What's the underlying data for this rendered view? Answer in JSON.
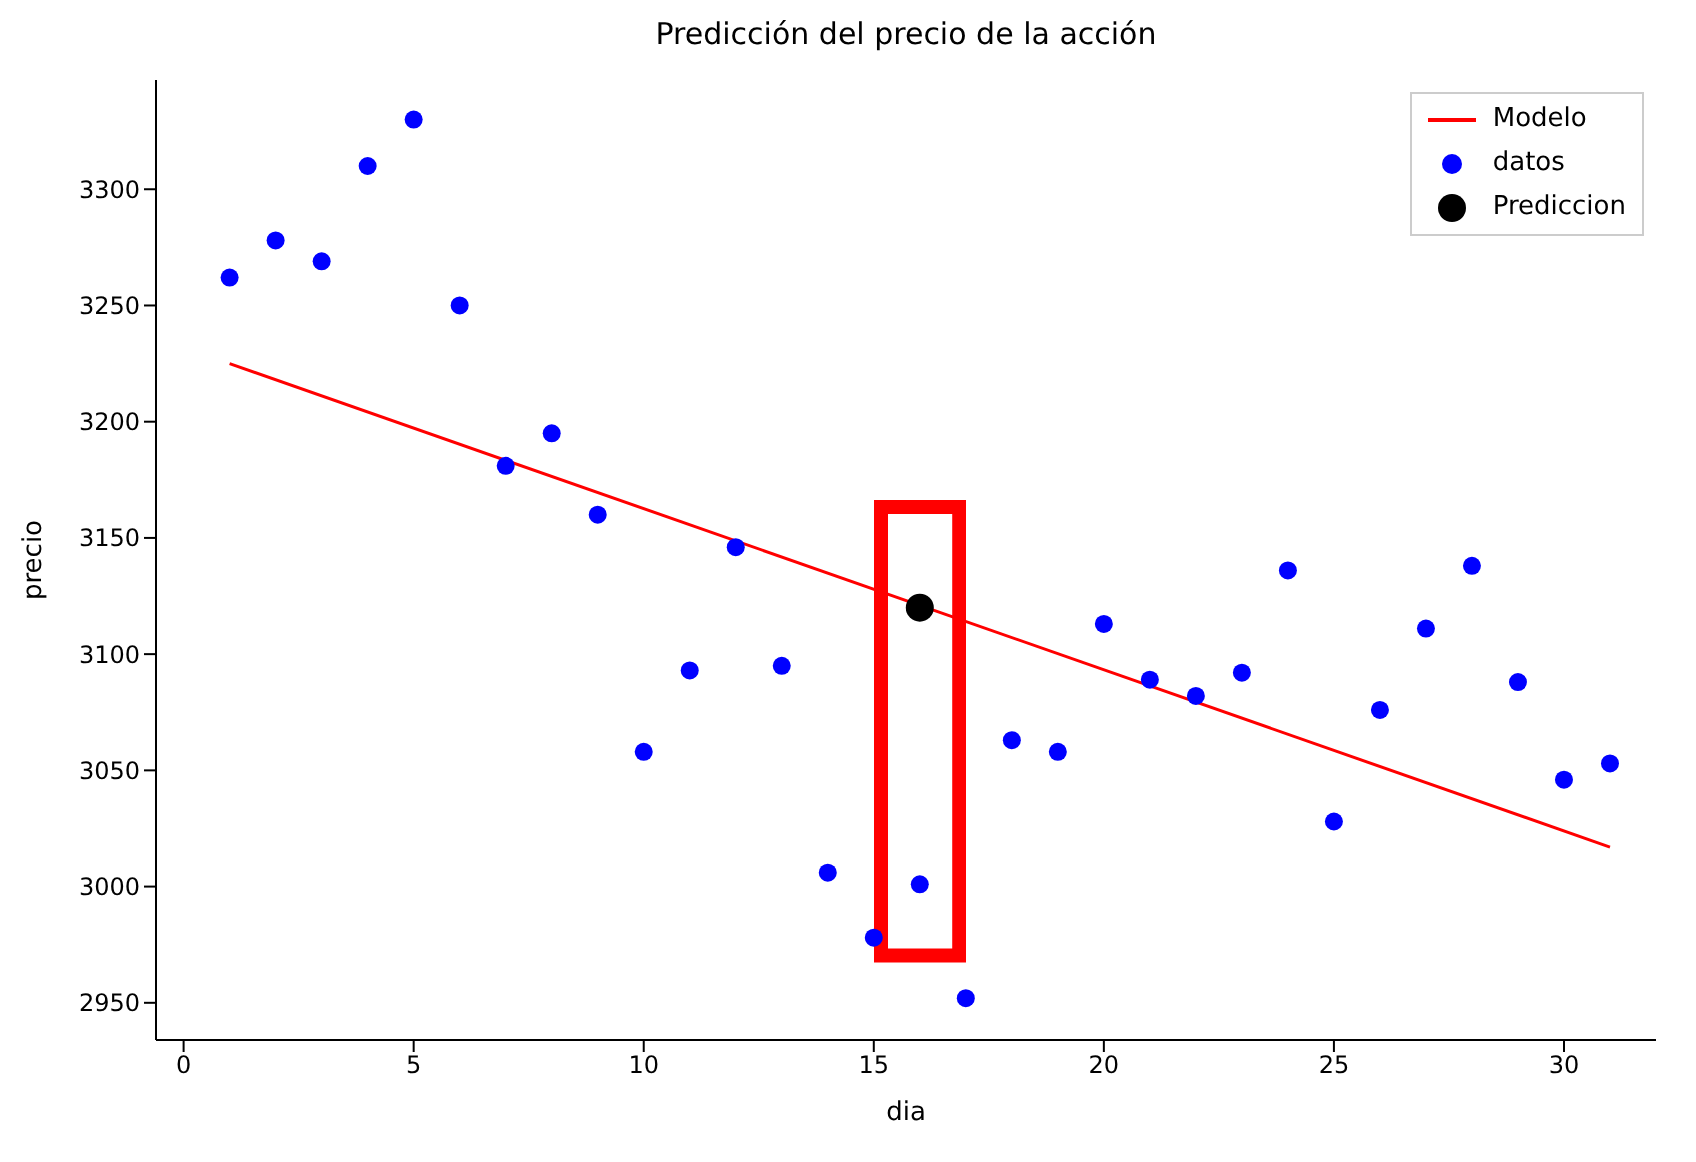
{
  "chart_data": {
    "type": "scatter",
    "title": "Predicción del precio de la acción",
    "xlabel": "dia",
    "ylabel": "precio",
    "xlim": [
      -0.6,
      32
    ],
    "xticks": [
      0,
      5,
      10,
      15,
      20,
      25,
      30
    ],
    "ylim": [
      2934,
      3347
    ],
    "yticks": [
      2950,
      3000,
      3050,
      3100,
      3150,
      3200,
      3250,
      3300
    ],
    "grid": false,
    "legend": "top right",
    "series": [
      {
        "name": "Modelo",
        "type": "line",
        "color": "#ff0000",
        "marker": "none",
        "x": [
          1,
          31
        ],
        "values": [
          3225,
          3017
        ]
      },
      {
        "name": "datos",
        "color": "#0000ff",
        "marker": "circle",
        "x": [
          1,
          2,
          3,
          4,
          5,
          6,
          7,
          8,
          9,
          10,
          11,
          12,
          13,
          14,
          15,
          16,
          17,
          18,
          19,
          20,
          21,
          22,
          23,
          24,
          25,
          26,
          27,
          28,
          29,
          30,
          31
        ],
        "values": [
          3262,
          3278,
          3269,
          3310,
          3330,
          3250,
          3181,
          3195,
          3160,
          3058,
          3093,
          3146,
          3095,
          3006,
          2978,
          3001,
          2952,
          3063,
          3058,
          3113,
          3089,
          3082,
          3092,
          3136,
          3028,
          3076,
          3111,
          3138,
          3088,
          3046,
          3053
        ]
      },
      {
        "name": "Prediccion",
        "color": "#000000",
        "marker": "circle",
        "x": [
          16
        ],
        "values": [
          3120
        ]
      }
    ]
  }
}
